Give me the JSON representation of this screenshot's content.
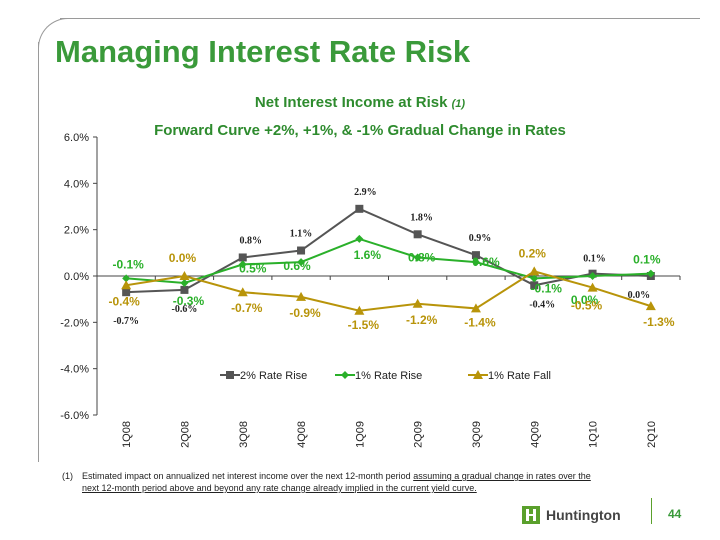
{
  "title": "Managing Interest Rate Risk",
  "subtitle_main": "Net Interest Income at Risk",
  "subtitle_note": "(1)",
  "subtitle_2": "Forward Curve +2%, +1%, & -1% Gradual Change in Rates",
  "footnote": {
    "num": "(1)",
    "text_a": "Estimated impact on annualized net interest income over the next 12-month period ",
    "text_u": "assuming a gradual change in rates over the",
    "text_b": "next 12-month period above and beyond any rate change already implied in the current yield curve."
  },
  "logo_text": "Huntington",
  "page_number": "44",
  "colors": {
    "title": "#3a9a3a",
    "s2": "#555555",
    "s1": "#2ab02a",
    "sf": "#b8940a"
  },
  "chart_data": {
    "type": "line",
    "categories": [
      "1Q08",
      "2Q08",
      "3Q08",
      "4Q08",
      "1Q09",
      "2Q09",
      "3Q09",
      "4Q09",
      "1Q10",
      "2Q10"
    ],
    "ylim": [
      -6,
      6
    ],
    "yticks": [
      "6.0%",
      "4.0%",
      "2.0%",
      "0.0%",
      "-2.0%",
      "-4.0%",
      "-6.0%"
    ],
    "series": [
      {
        "name": "2% Rate Rise",
        "color": "#555555",
        "marker": "square",
        "values": [
          -0.7,
          -0.6,
          0.8,
          1.1,
          2.9,
          1.8,
          0.9,
          -0.4,
          0.1,
          0.0
        ],
        "labels": [
          "-0.7%",
          "-0.6%",
          "0.8%",
          "1.1%",
          "2.9%",
          "1.8%",
          "0.9%",
          "-0.4%",
          "0.1%",
          "0.0%"
        ]
      },
      {
        "name": "1% Rate Rise",
        "color": "#2ab02a",
        "marker": "diamond",
        "values": [
          -0.1,
          -0.3,
          0.5,
          0.6,
          1.6,
          0.8,
          0.6,
          -0.1,
          0.0,
          0.1
        ],
        "labels": [
          "-0.1%",
          "-0.3%",
          "0.5%",
          "0.6%",
          "1.6%",
          "0.8%",
          "0.6%",
          "-0.1%",
          "0.0%",
          "0.1%"
        ]
      },
      {
        "name": "1% Rate Fall",
        "color": "#b8940a",
        "marker": "triangle",
        "values": [
          -0.4,
          0.0,
          -0.7,
          -0.9,
          -1.5,
          -1.2,
          -1.4,
          0.2,
          -0.5,
          -1.3
        ],
        "labels": [
          "-0.4%",
          "0.0%",
          "-0.7%",
          "-0.9%",
          "-1.5%",
          "-1.2%",
          "-1.4%",
          "0.2%",
          "-0.5%",
          "-1.3%"
        ]
      }
    ],
    "legend_position": "inside-center"
  }
}
